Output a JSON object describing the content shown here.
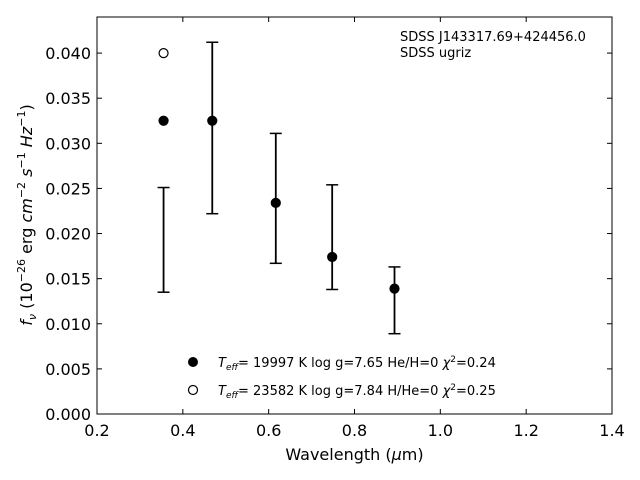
{
  "chart_data": {
    "type": "scatter",
    "xlabel": "Wavelength (μm)",
    "ylabel": "f_ν (10^−26 erg cm^−2 s^−1 Hz^−1)",
    "xlim": [
      0.2,
      1.4
    ],
    "ylim": [
      0.0,
      0.044
    ],
    "x_ticks": [
      "0.2",
      "0.4",
      "0.6",
      "0.8",
      "1.0",
      "1.2",
      "1.4"
    ],
    "y_ticks": [
      "0.000",
      "0.005",
      "0.010",
      "0.015",
      "0.020",
      "0.025",
      "0.030",
      "0.035",
      "0.040"
    ],
    "annotations": [
      "SDSS J143317.69+424456.0",
      "SDSS ugriz"
    ],
    "observed": {
      "x": [
        0.3551,
        0.4686,
        0.6166,
        0.748,
        0.8932
      ],
      "y": [
        0.0193,
        0.0317,
        0.0239,
        0.0196,
        0.0126
      ],
      "yerr_low": [
        0.0058,
        0.0095,
        0.0072,
        0.0058,
        0.0037
      ],
      "yerr_high": [
        0.0058,
        0.0095,
        0.0072,
        0.0058,
        0.0037
      ]
    },
    "series": [
      {
        "name": "T_eff= 19997 K  log g=7.65  He/H=0  χ²=0.24",
        "marker": "filled",
        "x": [
          0.3551,
          0.4686,
          0.6166,
          0.748,
          0.8932
        ],
        "y": [
          0.0325,
          0.0325,
          0.0234,
          0.0174,
          0.0139
        ]
      },
      {
        "name": "T_eff= 23582 K  log g=7.84  H/He=0  χ²=0.25",
        "marker": "open",
        "x": [
          0.3551
        ],
        "y": [
          0.04
        ]
      }
    ],
    "legend_placement": "lower-center",
    "grid": false
  }
}
